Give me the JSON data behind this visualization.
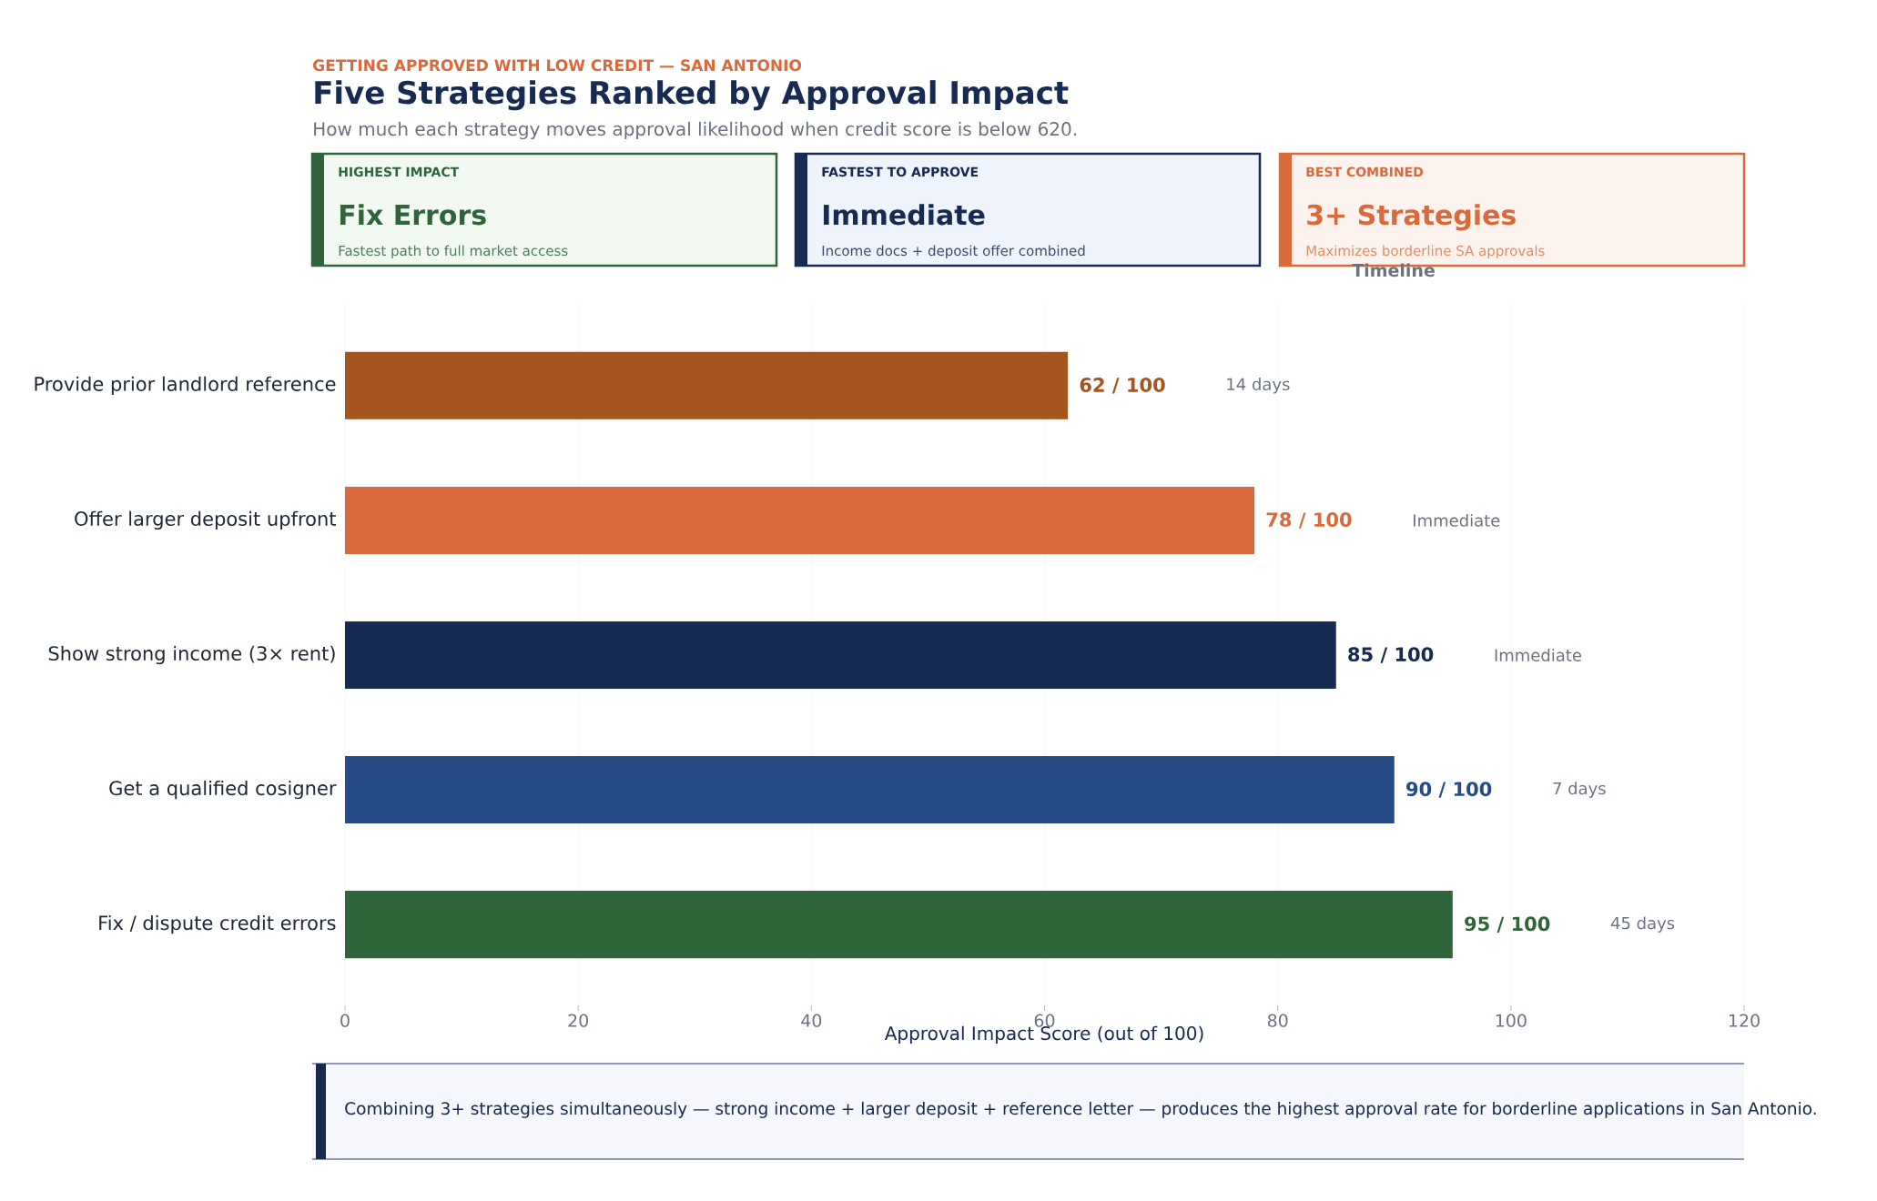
{
  "chart_data": {
    "type": "bar",
    "orientation": "horizontal",
    "title": "Five Strategies Ranked by Approval Impact",
    "subtitle": "How much each strategy moves approval likelihood when credit score is below 620.",
    "xlabel": "Approval Impact Score (out of 100)",
    "categories": [
      "Provide prior landlord reference",
      "Offer larger deposit upfront",
      "Show strong income (3× rent)",
      "Get a qualified cosigner",
      "Fix / dispute credit errors"
    ],
    "values": [
      62,
      78,
      85,
      90,
      95
    ],
    "colors": [
      "#a5561f",
      "#d96a3c",
      "#172a52",
      "#274b87",
      "#30643a"
    ],
    "value_labels": [
      "62 / 100",
      "78 / 100",
      "85 / 100",
      "90 / 100",
      "95 / 100"
    ],
    "xlim": [
      0,
      120
    ],
    "xticks": [
      0,
      20,
      40,
      60,
      80,
      100,
      120
    ],
    "grid": "x",
    "annotations": [
      "GETTING APPROVED WITH LOW CREDIT — SAN ANTONIO",
      "HIGHEST IMPACT",
      "Fix Errors",
      "Fastest path to full market access",
      "FASTEST TO APPROVE",
      "Immediate",
      "Income docs + deposit offer combined",
      "BEST COMBINED",
      "3+ Strategies",
      "Maximizes borderline SA approvals",
      "Timeline",
      "Combining 3+ strategies simultaneously — strong income + larger deposit + reference letter — produces the highest approval rate for borderline applications in San Antonio.",
      "14 days",
      "Immediate",
      "Immediate",
      "7 days",
      "45 days"
    ]
  }
}
